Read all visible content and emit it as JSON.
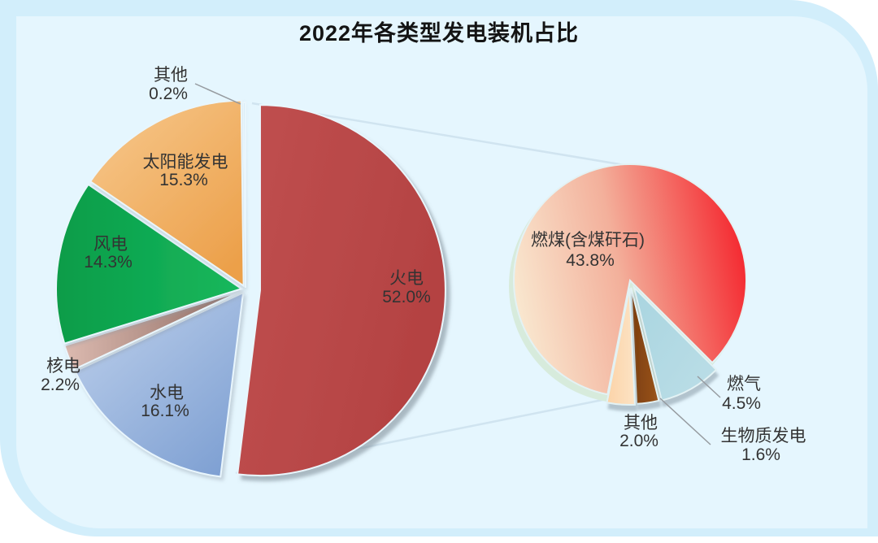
{
  "chart_data": {
    "type": "pie",
    "variant": "pie-of-pie",
    "title": "2022年各类型发电装机占比",
    "legend_position": "none",
    "main_pie": {
      "slices": [
        {
          "key": "thermal",
          "label": "火电",
          "value": 52.0,
          "pct_label": "52.0%",
          "color": "#c05050",
          "color2": "#b44242",
          "exploded": true
        },
        {
          "key": "hydro",
          "label": "水电",
          "value": 16.1,
          "pct_label": "16.1%",
          "color": "#bccfeb",
          "color2": "#7d9fd2"
        },
        {
          "key": "nuclear",
          "label": "核电",
          "value": 2.2,
          "pct_label": "2.2%",
          "color": "#dcbab0",
          "color2": "#8c6a61"
        },
        {
          "key": "wind",
          "label": "风电",
          "value": 14.3,
          "pct_label": "14.3%",
          "color": "#0a9c49",
          "color2": "#17b85c"
        },
        {
          "key": "solar",
          "label": "太阳能发电",
          "value": 15.3,
          "pct_label": "15.3%",
          "color": "#f7c98e",
          "color2": "#eca04a"
        },
        {
          "key": "other",
          "label": "其他",
          "value": 0.2,
          "pct_label": "0.2%",
          "color": "#d8ecf6",
          "color2": "#cfe6f2"
        }
      ]
    },
    "sub_pie": {
      "parent_label": "火电",
      "slices": [
        {
          "key": "coal",
          "label": "燃煤(含煤矸石)",
          "value": 43.8,
          "pct_label": "43.8%",
          "color": "#f9e7cf",
          "color_mid": "#f3b09b",
          "color2": "#f4262e"
        },
        {
          "key": "gas",
          "label": "燃气",
          "value": 4.5,
          "pct_label": "4.5%",
          "color": "#a9d5e0",
          "color2": "#bcdee7"
        },
        {
          "key": "biomass",
          "label": "生物质发电",
          "value": 1.6,
          "pct_label": "1.6%",
          "color": "#7c3d0d",
          "color2": "#9a551c"
        },
        {
          "key": "other",
          "label": "其他",
          "value": 2.0,
          "pct_label": "2.0%",
          "color": "#fbd3a8",
          "color2": "#fde3c4"
        }
      ]
    },
    "style_colors": {
      "card_bg": "#d2eefb",
      "panel_bg": "#e5f6fe",
      "label_text": "#333333",
      "title_text": "#141414",
      "connector_line": "#d0e4f0",
      "leader_line": "#969ba0",
      "sub_pie_halo": "#d7ebdc"
    }
  }
}
